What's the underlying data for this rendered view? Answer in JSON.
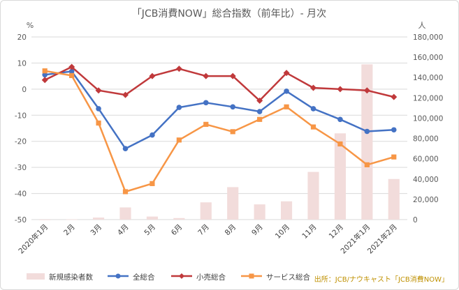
{
  "chart_data": {
    "type": "line",
    "title": "「JCB消費NOW」総合指数（前年比）- 月次",
    "left_unit": "%",
    "right_unit": "人",
    "categories": [
      "2020年1月",
      "2月",
      "3月",
      "4月",
      "5月",
      "6月",
      "7月",
      "8月",
      "9月",
      "10月",
      "11月",
      "12月",
      "2021年1月",
      "2021年2月"
    ],
    "y_left": {
      "min": -50,
      "max": 20,
      "step": 10,
      "ticks": [
        "20",
        "10",
        "0",
        "-10",
        "-20",
        "-30",
        "-40",
        "-50"
      ]
    },
    "y_right": {
      "min": 0,
      "max": 180000,
      "step": 20000,
      "ticks": [
        "180,000",
        "160,000",
        "140,000",
        "120,000",
        "100,000",
        "80,000",
        "60,000",
        "40,000",
        "20,000",
        "0"
      ]
    },
    "bars": {
      "name": "新規感染者数",
      "axis": "right",
      "color": "#f2dcdb",
      "values": [
        20,
        230,
        2000,
        12000,
        3000,
        1500,
        17000,
        32000,
        15000,
        18000,
        47000,
        85000,
        153000,
        40000
      ]
    },
    "series": [
      {
        "name": "全総合",
        "color": "#4472c4",
        "marker": "circle",
        "values": [
          5.5,
          6.8,
          -7.5,
          -22.8,
          -17.6,
          -7.0,
          -5.2,
          -6.8,
          -8.6,
          -0.8,
          -7.5,
          -11.6,
          -16.2,
          -15.6
        ]
      },
      {
        "name": "小売総合",
        "color": "#c0393b",
        "marker": "diamond",
        "values": [
          3.5,
          8.5,
          -0.5,
          -2.2,
          5.0,
          7.8,
          5.0,
          5.0,
          -4.4,
          6.2,
          0.5,
          0.0,
          -0.5,
          -3.0
        ]
      },
      {
        "name": "サービス総合",
        "color": "#f79646",
        "marker": "square",
        "values": [
          7.0,
          5.2,
          -13.0,
          -39.3,
          -36.2,
          -19.5,
          -13.5,
          -16.3,
          -11.6,
          -6.8,
          -14.5,
          -21.0,
          -29.0,
          -26.0
        ]
      }
    ],
    "legend_position": "bottom",
    "grid": true,
    "source": "出所：JCB/ナウキャスト「JCB消費NOW」"
  }
}
